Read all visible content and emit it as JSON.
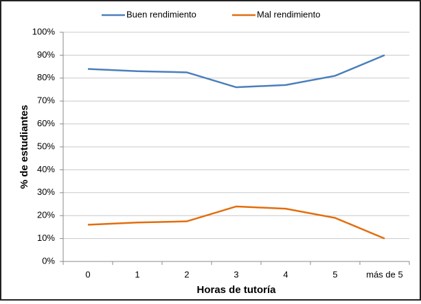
{
  "chart_data": {
    "type": "line",
    "categories": [
      "0",
      "1",
      "2",
      "3",
      "4",
      "5",
      "más de 5"
    ],
    "series": [
      {
        "name": "Buen rendimiento",
        "color": "#4a7ebb",
        "values": [
          84,
          83,
          82.5,
          76,
          77,
          81,
          90
        ]
      },
      {
        "name": "Mal rendimiento",
        "color": "#e46c0a",
        "values": [
          16,
          17,
          17.5,
          24,
          23,
          19,
          10
        ]
      }
    ],
    "xlabel": "Horas de tutoría",
    "ylabel": "% de estudiantes",
    "ylim": [
      0,
      100
    ],
    "yticks": [
      {
        "value": 0,
        "label": "0%"
      },
      {
        "value": 10,
        "label": "10%"
      },
      {
        "value": 20,
        "label": "20%"
      },
      {
        "value": 30,
        "label": "30%"
      },
      {
        "value": 40,
        "label": "40%"
      },
      {
        "value": 50,
        "label": "50%"
      },
      {
        "value": 60,
        "label": "60%"
      },
      {
        "value": 70,
        "label": "70%"
      },
      {
        "value": 80,
        "label": "80%"
      },
      {
        "value": 90,
        "label": "90%"
      },
      {
        "value": 100,
        "label": "100%"
      }
    ],
    "grid": true,
    "legend": "top"
  }
}
